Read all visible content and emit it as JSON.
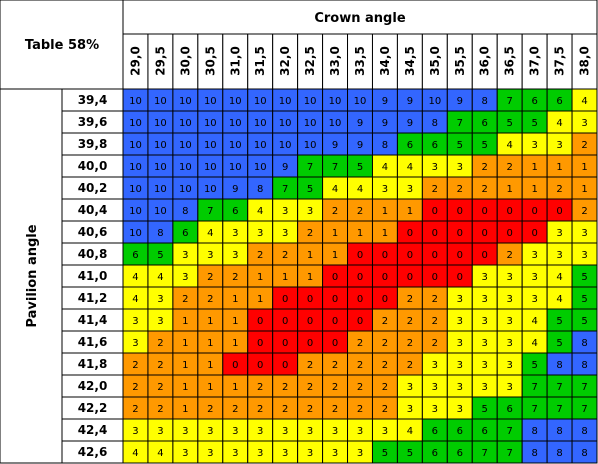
{
  "chart_data": {
    "type": "heatmap",
    "title": "Table 58%",
    "xlabel": "Crown angle",
    "ylabel": "Pavilion angle",
    "x": [
      "29,0",
      "29,5",
      "30,0",
      "30,5",
      "31,0",
      "31,5",
      "32,0",
      "32,5",
      "33,0",
      "33,5",
      "34,0",
      "34,5",
      "35,0",
      "35,5",
      "36,0",
      "36,5",
      "37,0",
      "37,5",
      "38,0"
    ],
    "y": [
      "39,4",
      "39,6",
      "39,8",
      "40,0",
      "40,2",
      "40,4",
      "40,6",
      "40,8",
      "41,0",
      "41,2",
      "41,4",
      "41,6",
      "41,8",
      "42,0",
      "42,2",
      "42,4",
      "42,6"
    ],
    "values": [
      [
        10,
        10,
        10,
        10,
        10,
        10,
        10,
        10,
        10,
        10,
        9,
        9,
        10,
        9,
        8,
        7,
        6,
        6,
        4
      ],
      [
        10,
        10,
        10,
        10,
        10,
        10,
        10,
        10,
        10,
        9,
        9,
        9,
        8,
        7,
        6,
        5,
        5,
        4,
        3
      ],
      [
        10,
        10,
        10,
        10,
        10,
        10,
        10,
        10,
        9,
        9,
        8,
        6,
        6,
        5,
        5,
        4,
        3,
        3,
        2
      ],
      [
        10,
        10,
        10,
        10,
        10,
        10,
        9,
        7,
        7,
        5,
        4,
        4,
        3,
        3,
        2,
        2,
        1,
        1,
        1
      ],
      [
        10,
        10,
        10,
        10,
        9,
        8,
        7,
        5,
        4,
        4,
        3,
        3,
        2,
        2,
        2,
        1,
        1,
        2,
        1
      ],
      [
        10,
        10,
        8,
        7,
        6,
        4,
        3,
        3,
        2,
        2,
        1,
        1,
        0,
        0,
        0,
        0,
        0,
        0,
        2
      ],
      [
        10,
        8,
        6,
        4,
        3,
        3,
        3,
        2,
        1,
        1,
        1,
        0,
        0,
        0,
        0,
        0,
        0,
        3,
        3
      ],
      [
        6,
        5,
        3,
        3,
        3,
        2,
        2,
        1,
        1,
        0,
        0,
        0,
        0,
        0,
        0,
        2,
        3,
        3,
        3
      ],
      [
        4,
        4,
        3,
        2,
        2,
        1,
        1,
        1,
        0,
        0,
        0,
        0,
        0,
        0,
        3,
        3,
        3,
        4,
        5
      ],
      [
        4,
        3,
        2,
        2,
        1,
        1,
        0,
        0,
        0,
        0,
        0,
        2,
        2,
        3,
        3,
        3,
        3,
        4,
        5
      ],
      [
        3,
        3,
        1,
        1,
        1,
        0,
        0,
        0,
        0,
        0,
        2,
        2,
        2,
        3,
        3,
        3,
        4,
        5,
        5
      ],
      [
        3,
        2,
        1,
        1,
        1,
        0,
        0,
        0,
        0,
        2,
        2,
        2,
        2,
        3,
        3,
        3,
        4,
        5,
        8
      ],
      [
        2,
        2,
        1,
        1,
        0,
        0,
        0,
        2,
        2,
        2,
        2,
        2,
        3,
        3,
        3,
        3,
        5,
        8,
        8
      ],
      [
        2,
        2,
        1,
        1,
        1,
        2,
        2,
        2,
        2,
        2,
        2,
        3,
        3,
        3,
        3,
        3,
        7,
        7,
        7
      ],
      [
        2,
        2,
        1,
        2,
        2,
        2,
        2,
        2,
        2,
        2,
        2,
        3,
        3,
        3,
        5,
        6,
        7,
        7,
        7
      ],
      [
        3,
        3,
        3,
        3,
        3,
        3,
        3,
        3,
        3,
        3,
        3,
        4,
        6,
        6,
        6,
        7,
        8,
        8,
        8
      ],
      [
        4,
        4,
        3,
        3,
        3,
        3,
        3,
        3,
        3,
        3,
        5,
        5,
        6,
        6,
        7,
        7,
        8,
        8,
        8
      ]
    ],
    "color_scale": [
      {
        "values": [
          0
        ],
        "color": "#ff0000"
      },
      {
        "values": [
          1,
          2
        ],
        "color": "#ff9900"
      },
      {
        "values": [
          3,
          4
        ],
        "color": "#ffff00"
      },
      {
        "values": [
          5,
          6,
          7
        ],
        "color": "#00cc00"
      },
      {
        "values": [
          8,
          9,
          10
        ],
        "color": "#3366ff"
      }
    ],
    "grid": true
  }
}
